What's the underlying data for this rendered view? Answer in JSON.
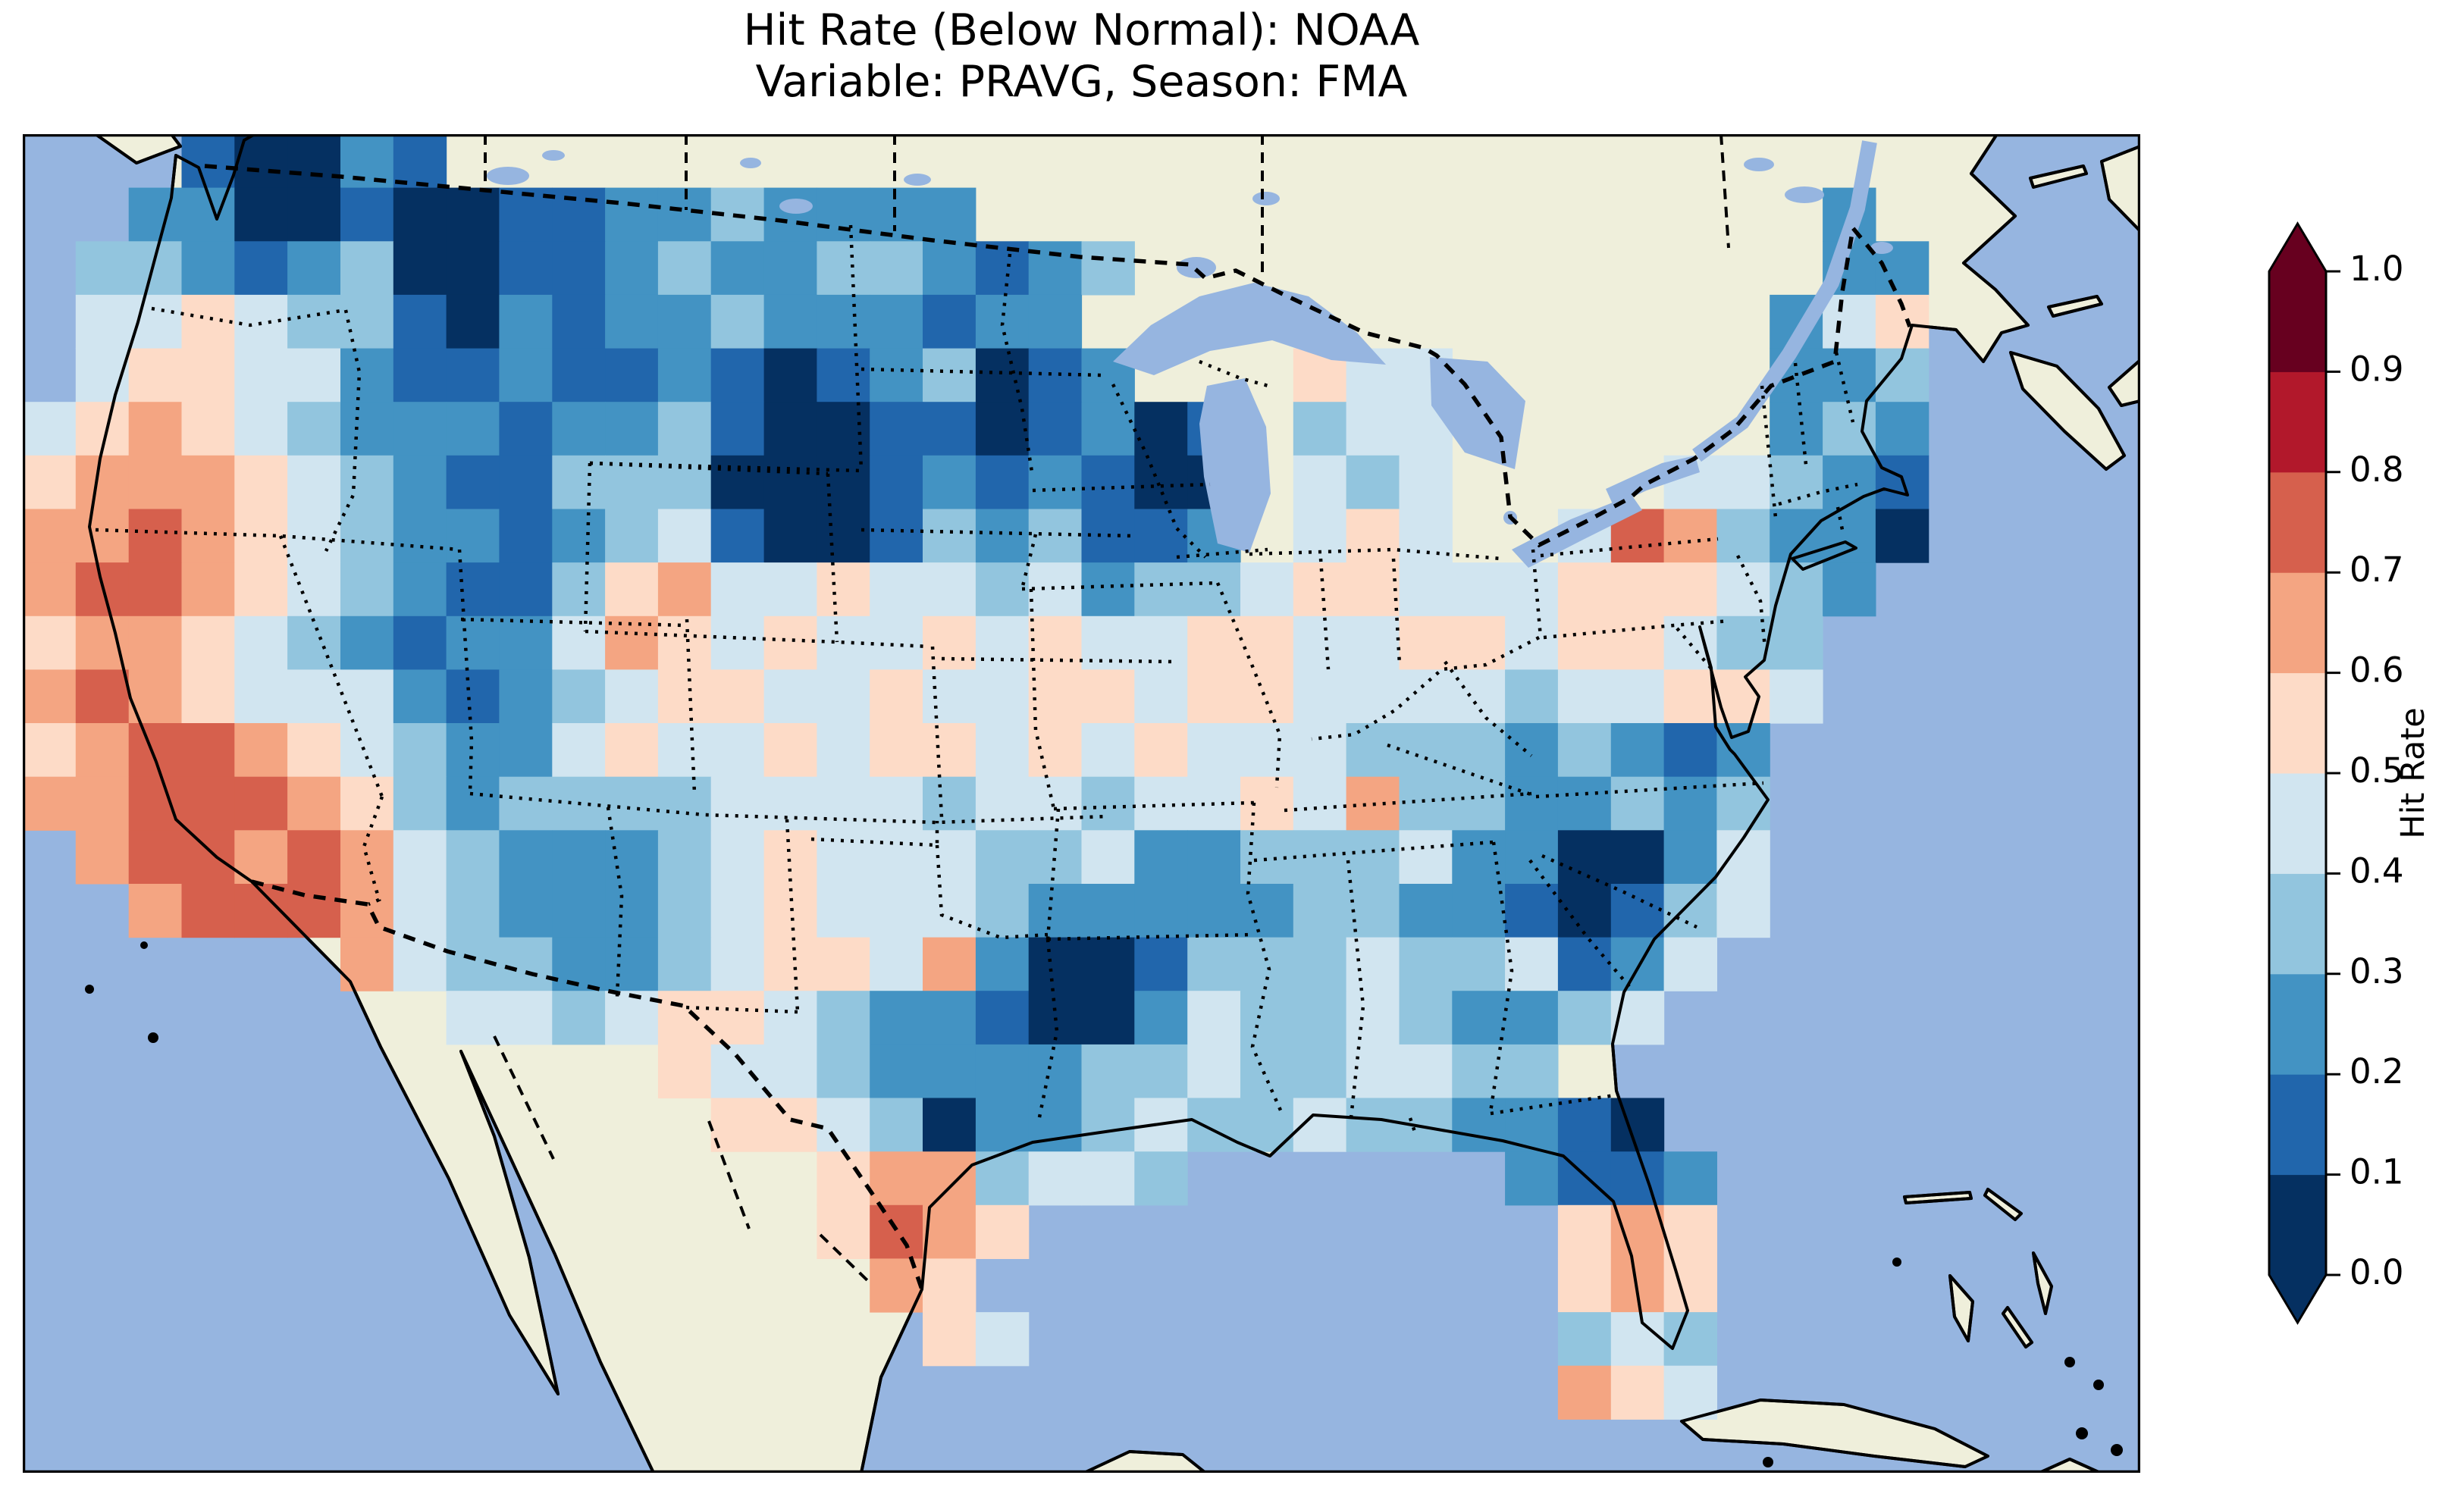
{
  "title": {
    "line1": "Hit Rate (Below Normal): NOAA",
    "line2": "Variable: PRAVG, Season: FMA"
  },
  "colorbar": {
    "label": "Hit Rate",
    "ticks": [
      "1.0",
      "0.9",
      "0.8",
      "0.7",
      "0.6",
      "0.5",
      "0.4",
      "0.3",
      "0.2",
      "0.1",
      "0.0"
    ],
    "extend": "both"
  },
  "chart_data": {
    "type": "heatmap",
    "title": "Hit Rate (Below Normal): NOAA",
    "subtitle": "Variable: PRAVG, Season: FMA",
    "variable": "PRAVG",
    "season": "FMA",
    "source": "NOAA",
    "metric": "Hit Rate (Below Normal)",
    "colorbar_label": "Hit Rate",
    "value_range": [
      0.0,
      1.0
    ],
    "colormap": {
      "name": "RdBu_r (10 discrete bins)",
      "boundaries": [
        0.0,
        0.1,
        0.2,
        0.3,
        0.4,
        0.5,
        0.6,
        0.7,
        0.8,
        0.9,
        1.0
      ],
      "bins": [
        "#053061",
        "#2166ac",
        "#4393c3",
        "#92c5de",
        "#d1e5f0",
        "#fddbc7",
        "#f4a582",
        "#d6604d",
        "#b2182b",
        "#67001f"
      ],
      "under_arrow": "#053061",
      "over_arrow": "#67001f"
    },
    "map_colors": {
      "ocean": "#96b5e0",
      "land": "#efefdb",
      "coastline": "#000000"
    },
    "grid_note": "Approximate CONUS hit-rate field read from the image; values are decile bin centers, null = no data (ocean / outside USA). 40 cols x 25 rows over the map frame.",
    "grid": {
      "cols": 40,
      "rows": 25,
      "cell_w": 69.825,
      "cell_h": 70.64,
      "values": [
        [
          null,
          null,
          null,
          0.15,
          0.05,
          0.05,
          0.25,
          0.15,
          null,
          null,
          null,
          null,
          null,
          null,
          null,
          null,
          null,
          null,
          null,
          null,
          null,
          null,
          null,
          null,
          null,
          null,
          null,
          null,
          null,
          null,
          null,
          null,
          null,
          null,
          null,
          null,
          null,
          null,
          null,
          null
        ],
        [
          null,
          null,
          0.25,
          0.25,
          0.05,
          0.05,
          0.15,
          0.05,
          0.05,
          0.15,
          0.15,
          0.25,
          0.25,
          0.35,
          0.25,
          0.25,
          0.25,
          0.25,
          null,
          null,
          null,
          null,
          null,
          null,
          null,
          null,
          null,
          null,
          null,
          null,
          null,
          null,
          null,
          null,
          0.25,
          null,
          null,
          null,
          null,
          null
        ],
        [
          null,
          0.35,
          0.35,
          0.25,
          0.15,
          0.25,
          0.35,
          0.05,
          0.05,
          0.15,
          0.15,
          0.25,
          0.35,
          0.25,
          0.25,
          0.35,
          0.35,
          0.25,
          0.15,
          0.25,
          0.35,
          null,
          null,
          null,
          null,
          null,
          null,
          null,
          null,
          null,
          null,
          null,
          null,
          null,
          0.25,
          0.25,
          null,
          null,
          null,
          null
        ],
        [
          null,
          0.45,
          0.45,
          0.55,
          0.45,
          0.35,
          0.35,
          0.15,
          0.05,
          0.25,
          0.15,
          0.25,
          0.25,
          0.35,
          0.25,
          0.25,
          0.25,
          0.15,
          0.25,
          0.25,
          null,
          null,
          null,
          null,
          null,
          null,
          null,
          null,
          null,
          null,
          null,
          null,
          null,
          0.25,
          0.45,
          0.55,
          null,
          null,
          null,
          null
        ],
        [
          null,
          0.45,
          0.55,
          0.55,
          0.45,
          0.45,
          0.25,
          0.15,
          0.15,
          0.25,
          0.15,
          0.15,
          0.25,
          0.15,
          0.05,
          0.15,
          0.25,
          0.35,
          0.05,
          0.15,
          0.25,
          null,
          null,
          null,
          0.55,
          0.45,
          0.45,
          null,
          null,
          null,
          null,
          null,
          null,
          0.25,
          0.25,
          0.35,
          null,
          null,
          null,
          null
        ],
        [
          0.45,
          0.55,
          0.65,
          0.55,
          0.45,
          0.35,
          0.25,
          0.25,
          0.25,
          0.15,
          0.25,
          0.25,
          0.35,
          0.15,
          0.05,
          0.05,
          0.15,
          0.15,
          0.05,
          0.15,
          0.25,
          0.05,
          0.15,
          null,
          0.35,
          0.45,
          0.45,
          null,
          null,
          null,
          null,
          null,
          null,
          0.25,
          0.35,
          0.25,
          null,
          null,
          null,
          null
        ],
        [
          0.55,
          0.65,
          0.65,
          0.65,
          0.55,
          0.45,
          0.35,
          0.25,
          0.15,
          0.15,
          0.35,
          0.35,
          0.35,
          0.05,
          0.05,
          0.05,
          0.15,
          0.25,
          0.15,
          0.25,
          0.15,
          0.05,
          0.05,
          null,
          0.45,
          0.35,
          0.45,
          null,
          null,
          null,
          null,
          0.45,
          0.45,
          0.35,
          0.25,
          0.15,
          null,
          null,
          null,
          null
        ],
        [
          0.65,
          0.65,
          0.75,
          0.65,
          0.55,
          0.45,
          0.35,
          0.25,
          0.25,
          0.15,
          0.25,
          0.35,
          0.45,
          0.15,
          0.05,
          0.05,
          0.15,
          0.35,
          0.25,
          0.35,
          0.15,
          0.15,
          0.25,
          null,
          0.45,
          0.55,
          0.45,
          null,
          null,
          0.45,
          0.75,
          0.65,
          0.35,
          0.25,
          0.25,
          0.05,
          null,
          null,
          null,
          null
        ],
        [
          0.65,
          0.75,
          0.75,
          0.65,
          0.55,
          0.45,
          0.35,
          0.25,
          0.15,
          0.15,
          0.35,
          0.55,
          0.65,
          0.45,
          0.45,
          0.55,
          0.45,
          0.45,
          0.35,
          0.45,
          0.25,
          0.35,
          0.35,
          0.45,
          0.55,
          0.55,
          0.45,
          0.45,
          0.45,
          0.55,
          0.55,
          0.55,
          0.45,
          0.35,
          0.25,
          null,
          null,
          null,
          null,
          null
        ],
        [
          0.55,
          0.65,
          0.65,
          0.55,
          0.45,
          0.35,
          0.25,
          0.15,
          0.25,
          0.25,
          0.45,
          0.65,
          0.55,
          0.45,
          0.55,
          0.45,
          0.45,
          0.55,
          0.45,
          0.55,
          0.45,
          0.45,
          0.55,
          0.55,
          0.45,
          0.45,
          0.55,
          0.55,
          0.45,
          0.55,
          0.55,
          0.45,
          0.35,
          0.35,
          null,
          null,
          null,
          null,
          null,
          null
        ],
        [
          0.65,
          0.75,
          0.65,
          0.55,
          0.45,
          0.45,
          0.45,
          0.25,
          0.15,
          0.25,
          0.35,
          0.45,
          0.55,
          0.55,
          0.45,
          0.45,
          0.55,
          0.45,
          0.45,
          0.55,
          0.55,
          0.45,
          0.55,
          0.55,
          0.45,
          0.45,
          0.45,
          0.45,
          0.35,
          0.45,
          0.45,
          0.55,
          0.55,
          0.45,
          null,
          null,
          null,
          null,
          null,
          null
        ],
        [
          0.55,
          0.65,
          0.75,
          0.75,
          0.65,
          0.55,
          0.45,
          0.35,
          0.25,
          0.25,
          0.45,
          0.55,
          0.45,
          0.45,
          0.55,
          0.45,
          0.55,
          0.55,
          0.45,
          0.55,
          0.45,
          0.55,
          0.45,
          0.45,
          0.45,
          0.35,
          0.35,
          0.35,
          0.25,
          0.35,
          0.25,
          0.15,
          0.25,
          null,
          null,
          null,
          null,
          null,
          null,
          null
        ],
        [
          0.65,
          0.65,
          0.75,
          0.75,
          0.75,
          0.65,
          0.55,
          0.35,
          0.25,
          0.35,
          0.35,
          0.35,
          0.35,
          0.45,
          0.45,
          0.45,
          0.45,
          0.35,
          0.45,
          0.45,
          0.35,
          0.45,
          0.45,
          0.55,
          0.45,
          0.65,
          0.35,
          0.35,
          0.25,
          0.25,
          0.35,
          0.25,
          0.35,
          null,
          null,
          null,
          null,
          null,
          null,
          null
        ],
        [
          null,
          0.65,
          0.75,
          0.75,
          0.65,
          0.75,
          0.65,
          0.45,
          0.35,
          0.25,
          0.25,
          0.25,
          0.35,
          0.45,
          0.55,
          0.45,
          0.45,
          0.45,
          0.35,
          0.35,
          0.45,
          0.25,
          0.25,
          0.35,
          0.35,
          0.35,
          0.45,
          0.25,
          0.25,
          0.05,
          0.05,
          0.25,
          0.45,
          null,
          null,
          null,
          null,
          null,
          null,
          null
        ],
        [
          null,
          null,
          0.65,
          0.75,
          0.75,
          0.75,
          0.65,
          0.45,
          0.35,
          0.25,
          0.25,
          0.25,
          0.35,
          0.45,
          0.55,
          0.45,
          0.45,
          0.45,
          0.35,
          0.25,
          0.25,
          0.25,
          0.25,
          0.25,
          0.35,
          0.35,
          0.25,
          0.25,
          0.15,
          0.05,
          0.15,
          0.35,
          0.45,
          null,
          null,
          null,
          null,
          null,
          null,
          null
        ],
        [
          null,
          null,
          null,
          null,
          null,
          null,
          0.65,
          0.45,
          0.35,
          0.35,
          0.25,
          0.25,
          0.35,
          0.45,
          0.55,
          0.55,
          0.45,
          0.65,
          0.25,
          0.05,
          0.05,
          0.15,
          0.35,
          0.35,
          0.35,
          0.45,
          0.35,
          0.35,
          0.45,
          0.15,
          0.25,
          0.45,
          null,
          null,
          null,
          null,
          null,
          null,
          null,
          null
        ],
        [
          null,
          null,
          null,
          null,
          null,
          null,
          null,
          null,
          0.45,
          0.45,
          0.35,
          0.45,
          0.55,
          0.55,
          0.45,
          0.35,
          0.25,
          0.25,
          0.15,
          0.05,
          0.05,
          0.25,
          0.45,
          0.35,
          0.35,
          0.45,
          0.35,
          0.25,
          0.25,
          0.35,
          0.45,
          null,
          null,
          null,
          null,
          null,
          null,
          null,
          null,
          null
        ],
        [
          null,
          null,
          null,
          null,
          null,
          null,
          null,
          null,
          null,
          null,
          null,
          null,
          0.55,
          0.45,
          0.45,
          0.35,
          0.25,
          0.25,
          0.25,
          0.25,
          0.35,
          0.35,
          0.45,
          0.35,
          0.35,
          0.45,
          0.45,
          0.35,
          0.35,
          null,
          null,
          null,
          null,
          null,
          null,
          null,
          null,
          null,
          null,
          null
        ],
        [
          null,
          null,
          null,
          null,
          null,
          null,
          null,
          null,
          null,
          null,
          null,
          null,
          null,
          0.55,
          0.55,
          0.45,
          0.35,
          0.05,
          0.25,
          0.25,
          0.35,
          0.45,
          0.35,
          0.35,
          0.45,
          0.35,
          0.35,
          0.25,
          0.25,
          0.15,
          0.05,
          null,
          null,
          null,
          null,
          null,
          null,
          null,
          null,
          null
        ],
        [
          null,
          null,
          null,
          null,
          null,
          null,
          null,
          null,
          null,
          null,
          null,
          null,
          null,
          null,
          null,
          0.55,
          0.65,
          0.65,
          0.35,
          0.45,
          0.45,
          0.35,
          null,
          null,
          null,
          null,
          null,
          null,
          0.25,
          0.15,
          0.15,
          0.25,
          null,
          null,
          null,
          null,
          null,
          null,
          null,
          null
        ],
        [
          null,
          null,
          null,
          null,
          null,
          null,
          null,
          null,
          null,
          null,
          null,
          null,
          null,
          null,
          null,
          0.55,
          0.75,
          0.65,
          0.55,
          null,
          null,
          null,
          null,
          null,
          null,
          null,
          null,
          null,
          null,
          0.55,
          0.65,
          0.55,
          null,
          null,
          null,
          null,
          null,
          null,
          null,
          null
        ],
        [
          null,
          null,
          null,
          null,
          null,
          null,
          null,
          null,
          null,
          null,
          null,
          null,
          null,
          null,
          null,
          null,
          0.65,
          0.55,
          null,
          null,
          null,
          null,
          null,
          null,
          null,
          null,
          null,
          null,
          null,
          0.55,
          0.65,
          0.55,
          null,
          null,
          null,
          null,
          null,
          null,
          null,
          null
        ],
        [
          null,
          null,
          null,
          null,
          null,
          null,
          null,
          null,
          null,
          null,
          null,
          null,
          null,
          null,
          null,
          null,
          null,
          0.55,
          0.45,
          null,
          null,
          null,
          null,
          null,
          null,
          null,
          null,
          null,
          null,
          0.35,
          0.45,
          0.35,
          null,
          null,
          null,
          null,
          null,
          null,
          null,
          null
        ],
        [
          null,
          null,
          null,
          null,
          null,
          null,
          null,
          null,
          null,
          null,
          null,
          null,
          null,
          null,
          null,
          null,
          null,
          null,
          null,
          null,
          null,
          null,
          null,
          null,
          null,
          null,
          null,
          null,
          null,
          0.65,
          0.55,
          0.45,
          null,
          null,
          null,
          null,
          null,
          null,
          null,
          null
        ],
        [
          null,
          null,
          null,
          null,
          null,
          null,
          null,
          null,
          null,
          null,
          null,
          null,
          null,
          null,
          null,
          null,
          null,
          null,
          null,
          null,
          null,
          null,
          null,
          null,
          null,
          null,
          null,
          null,
          null,
          null,
          null,
          null,
          null,
          null,
          null,
          null,
          null,
          null,
          null,
          null
        ]
      ]
    }
  }
}
